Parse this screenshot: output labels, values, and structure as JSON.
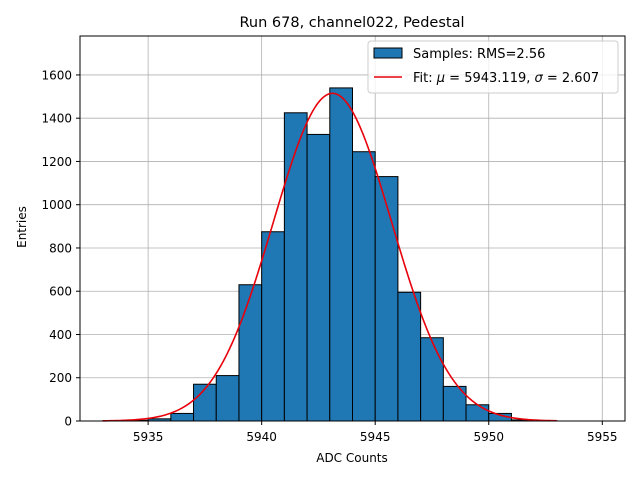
{
  "chart_data": {
    "type": "bar",
    "title": "Run 678, channel022, Pedestal",
    "xlabel": "ADC Counts",
    "ylabel": "Entries",
    "xlim": [
      5932.0,
      5956.0
    ],
    "ylim": [
      0,
      1780
    ],
    "xticks": [
      5935,
      5940,
      5945,
      5950,
      5955
    ],
    "yticks": [
      0,
      200,
      400,
      600,
      800,
      1000,
      1200,
      1400,
      1600
    ],
    "grid": true,
    "legend_position": "top-right",
    "histogram": {
      "name": "Samples: RMS=2.56",
      "bin_edges": [
        5933,
        5934,
        5935,
        5936,
        5937,
        5938,
        5939,
        5940,
        5941,
        5942,
        5943,
        5944,
        5945,
        5946,
        5947,
        5948,
        5949,
        5950,
        5951,
        5952,
        5953
      ],
      "counts": [
        1,
        3,
        10,
        35,
        170,
        210,
        630,
        875,
        1425,
        1325,
        1540,
        1245,
        1130,
        595,
        385,
        160,
        75,
        35,
        5,
        1
      ],
      "color": "#1f77b4",
      "edgecolor": "#000000"
    },
    "fit": {
      "name_prefix": "Fit: ",
      "mu_symbol": "μ",
      "mu_text": " = 5943.119, ",
      "sigma_symbol": "σ",
      "sigma_text": " = 2.607",
      "mu": 5943.119,
      "sigma": 2.607,
      "amplitude": 1515,
      "x_range": [
        5933,
        5953
      ],
      "color": "#e8000b"
    }
  }
}
